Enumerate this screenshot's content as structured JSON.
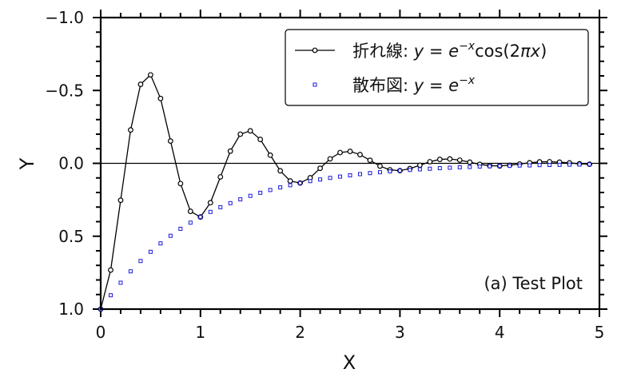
{
  "chart_data": {
    "type": "line",
    "title": "",
    "xlabel": "X",
    "ylabel": "Y",
    "xlim": [
      0,
      5
    ],
    "ylim": [
      1.0,
      -1.0
    ],
    "y_inverted": true,
    "grid": false,
    "x_ticks": [
      "0",
      "1",
      "2",
      "3",
      "4",
      "5"
    ],
    "x_tick_values": [
      0,
      1,
      2,
      3,
      4,
      5
    ],
    "y_ticks": [
      "−1.0",
      "−0.5",
      "0.0",
      "0.5",
      "1.0"
    ],
    "y_tick_values": [
      -1.0,
      -0.5,
      0.0,
      0.5,
      1.0
    ],
    "x_minor_step": 0.2,
    "y_minor_step": 0.1,
    "horizontal_reference_line": 0.0,
    "annotation": "(a) Test Plot",
    "legend_position": "upper right",
    "x": [
      0.0,
      0.1,
      0.2,
      0.3,
      0.4,
      0.5,
      0.6,
      0.7,
      0.8,
      0.9,
      1.0,
      1.1,
      1.2,
      1.3,
      1.4,
      1.5,
      1.6,
      1.7,
      1.8,
      1.9,
      2.0,
      2.1,
      2.2,
      2.3,
      2.4,
      2.5,
      2.6,
      2.7,
      2.8,
      2.9,
      3.0,
      3.1,
      3.2,
      3.3,
      3.4,
      3.5,
      3.6,
      3.7,
      3.8,
      3.9,
      4.0,
      4.1,
      4.2,
      4.3,
      4.4,
      4.5,
      4.6,
      4.7,
      4.8,
      4.9
    ],
    "series": [
      {
        "name": "折れ線: y = e^{−x}cos(2πx)",
        "kind": "line",
        "marker": "open-circle",
        "color": "#000000",
        "values": [
          1.0,
          0.732,
          0.253,
          -0.229,
          -0.542,
          -0.607,
          -0.445,
          -0.153,
          0.139,
          0.329,
          0.368,
          0.27,
          0.093,
          -0.084,
          -0.2,
          -0.223,
          -0.164,
          -0.056,
          0.051,
          0.121,
          0.135,
          0.099,
          0.034,
          -0.031,
          -0.074,
          -0.082,
          -0.06,
          -0.021,
          0.019,
          0.045,
          0.05,
          0.036,
          0.013,
          -0.011,
          -0.027,
          -0.03,
          -0.022,
          -0.008,
          0.007,
          0.016,
          0.018,
          0.013,
          0.005,
          -0.004,
          -0.01,
          -0.011,
          -0.008,
          -0.003,
          0.003,
          0.006
        ]
      },
      {
        "name": "散布図: y = e^{−x}",
        "kind": "scatter",
        "marker": "open-square",
        "color": "#1a1adc",
        "values": [
          1.0,
          0.905,
          0.819,
          0.741,
          0.67,
          0.607,
          0.549,
          0.497,
          0.449,
          0.407,
          0.368,
          0.333,
          0.301,
          0.273,
          0.247,
          0.223,
          0.202,
          0.183,
          0.165,
          0.15,
          0.135,
          0.122,
          0.111,
          0.1,
          0.091,
          0.082,
          0.074,
          0.067,
          0.061,
          0.055,
          0.05,
          0.045,
          0.041,
          0.037,
          0.033,
          0.03,
          0.027,
          0.025,
          0.022,
          0.02,
          0.018,
          0.017,
          0.015,
          0.014,
          0.012,
          0.011,
          0.01,
          0.009,
          0.008,
          0.007
        ]
      }
    ]
  },
  "legend": {
    "line_label_prefix": "折れ線: ",
    "line_formula": {
      "y": "y",
      "eq": " = ",
      "e": "e",
      "sup": "−x",
      "rest1": "cos(2",
      "pi": "π",
      "x": "x",
      "rest2": ")"
    },
    "scatter_label_prefix": "散布図: ",
    "scatter_formula": {
      "y": "y",
      "eq": " = ",
      "e": "e",
      "sup": "−x"
    }
  },
  "axes": {
    "xlabel": "X",
    "ylabel": "Y",
    "annotation": "(a) Test Plot"
  },
  "colors": {
    "line": "#000000",
    "scatter": "#1a1adc",
    "axis": "#000000"
  }
}
